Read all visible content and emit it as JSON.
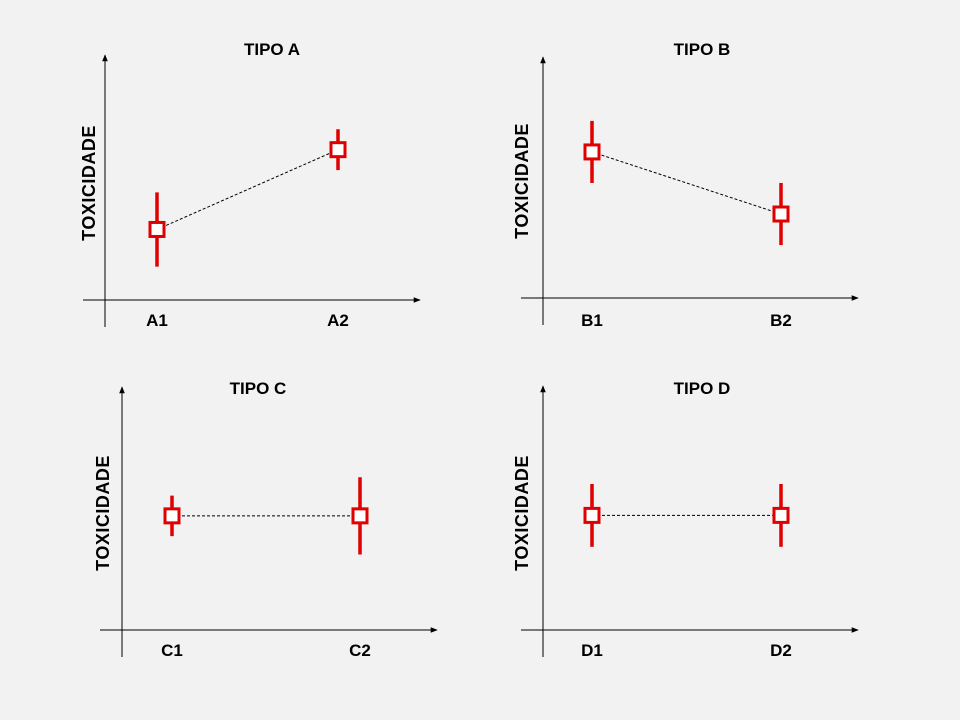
{
  "colors": {
    "background": "#f2f2f2",
    "series": "#e00000",
    "axis": "#000000"
  },
  "chart_data": [
    {
      "type": "scatter",
      "title": "TIPO A",
      "ylabel": "TOXICIDADE",
      "xlabel": "",
      "categories": [
        "A1",
        "A2"
      ],
      "values": [
        2.6,
        6.9
      ],
      "error_low": [
        0.6,
        5.8
      ],
      "error_high": [
        4.6,
        8.0
      ],
      "ylim": [
        -1.2,
        12.0
      ],
      "connector": "dashed",
      "grid": false
    },
    {
      "type": "scatter",
      "title": "TIPO B",
      "ylabel": "TOXICIDADE",
      "xlabel": "",
      "categories": [
        "B1",
        "B2"
      ],
      "values": [
        6.8,
        3.4
      ],
      "error_low": [
        5.1,
        1.7
      ],
      "error_high": [
        8.5,
        5.1
      ],
      "ylim": [
        -1.2,
        12.0
      ],
      "connector": "dashed",
      "grid": false
    },
    {
      "type": "scatter",
      "title": "TIPO C",
      "ylabel": "TOXICIDADE",
      "xlabel": "",
      "categories": [
        "C1",
        "C2"
      ],
      "values": [
        5.0,
        5.0
      ],
      "error_low": [
        3.9,
        2.9
      ],
      "error_high": [
        6.1,
        7.1
      ],
      "ylim": [
        -1.2,
        12.0
      ],
      "connector": "dashed",
      "grid": false
    },
    {
      "type": "scatter",
      "title": "TIPO D",
      "ylabel": "TOXICIDADE",
      "xlabel": "",
      "categories": [
        "D1",
        "D2"
      ],
      "values": [
        5.0,
        5.0
      ],
      "error_low": [
        3.3,
        3.3
      ],
      "error_high": [
        6.7,
        6.7
      ],
      "ylim": [
        -1.2,
        12.0
      ],
      "connector": "dashed",
      "grid": false
    }
  ]
}
